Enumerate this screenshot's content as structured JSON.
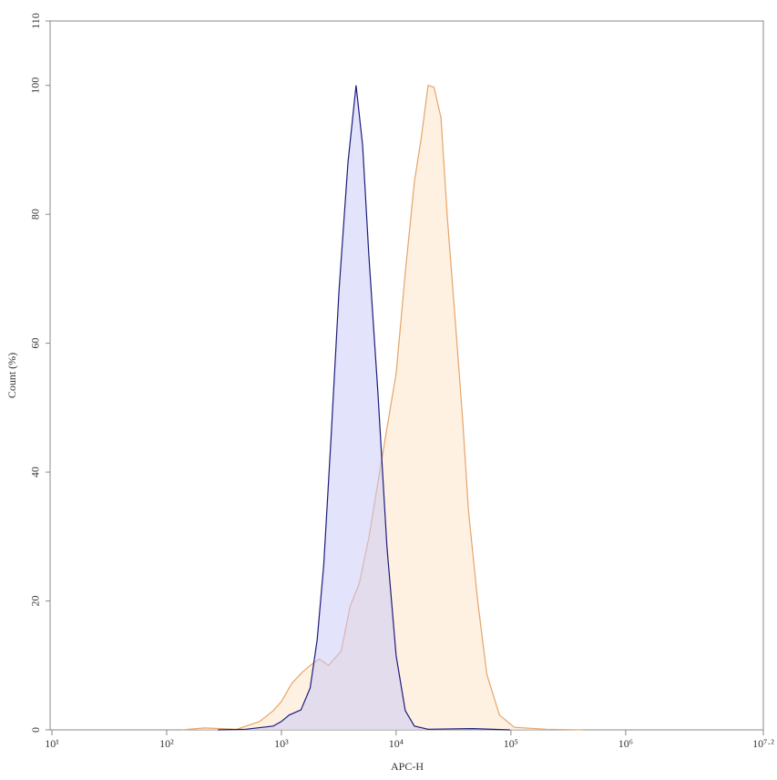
{
  "chart_data": {
    "type": "area",
    "x_label": "APC-H",
    "y_label": "Count (%)",
    "xscale": "log",
    "xlim": [
      10,
      15848932
    ],
    "xticks": [
      {
        "value": 10,
        "label": "10¹"
      },
      {
        "value": 100,
        "label": "10²"
      },
      {
        "value": 1000,
        "label": "10³"
      },
      {
        "value": 10000,
        "label": "10⁴"
      },
      {
        "value": 100000,
        "label": "10⁵"
      },
      {
        "value": 1000000,
        "label": "10⁶"
      },
      {
        "value": 15848932,
        "label": "10⁷·²"
      }
    ],
    "ylim": [
      0,
      110
    ],
    "yticks": [
      0,
      20,
      40,
      60,
      80,
      100,
      110
    ],
    "series": [
      {
        "color": "#e6a468",
        "fill": "#ffe3c4",
        "x": [
          135,
          214,
          407,
          646,
          851,
          1000,
          1230,
          1510,
          1780,
          2140,
          2570,
          3310,
          3980,
          4790,
          5780,
          6920,
          8310,
          10000,
          12000,
          14400,
          16600,
          19000,
          21400,
          24600,
          28000,
          33100,
          38000,
          42700,
          51300,
          61700,
          79400,
          107000,
          204000,
          427000
        ],
        "values": [
          0,
          0.3,
          0.1,
          1.3,
          3,
          4.4,
          7.2,
          8.9,
          10,
          11,
          10,
          12.2,
          19.2,
          22.8,
          29.8,
          38.3,
          46.8,
          55.3,
          70.9,
          85,
          92,
          100,
          99.7,
          95,
          79.3,
          62.4,
          48.2,
          34,
          20,
          8.6,
          2.3,
          0.4,
          0.1,
          0
        ]
      },
      {
        "color": "#1c1c7a",
        "fill": "#c8c8fa",
        "x": [
          280,
          490,
          850,
          1000,
          1170,
          1480,
          1780,
          2050,
          2340,
          2700,
          3170,
          3800,
          4470,
          5100,
          5780,
          6920,
          8310,
          10000,
          12000,
          14400,
          19000,
          47000,
          98000
        ],
        "values": [
          0,
          0.1,
          0.6,
          1.3,
          2.3,
          3.1,
          6.5,
          14,
          25.6,
          45,
          68,
          88,
          100,
          90.7,
          73.7,
          52.5,
          28.4,
          11.5,
          3,
          0.6,
          0.1,
          0.2,
          0
        ]
      }
    ]
  }
}
